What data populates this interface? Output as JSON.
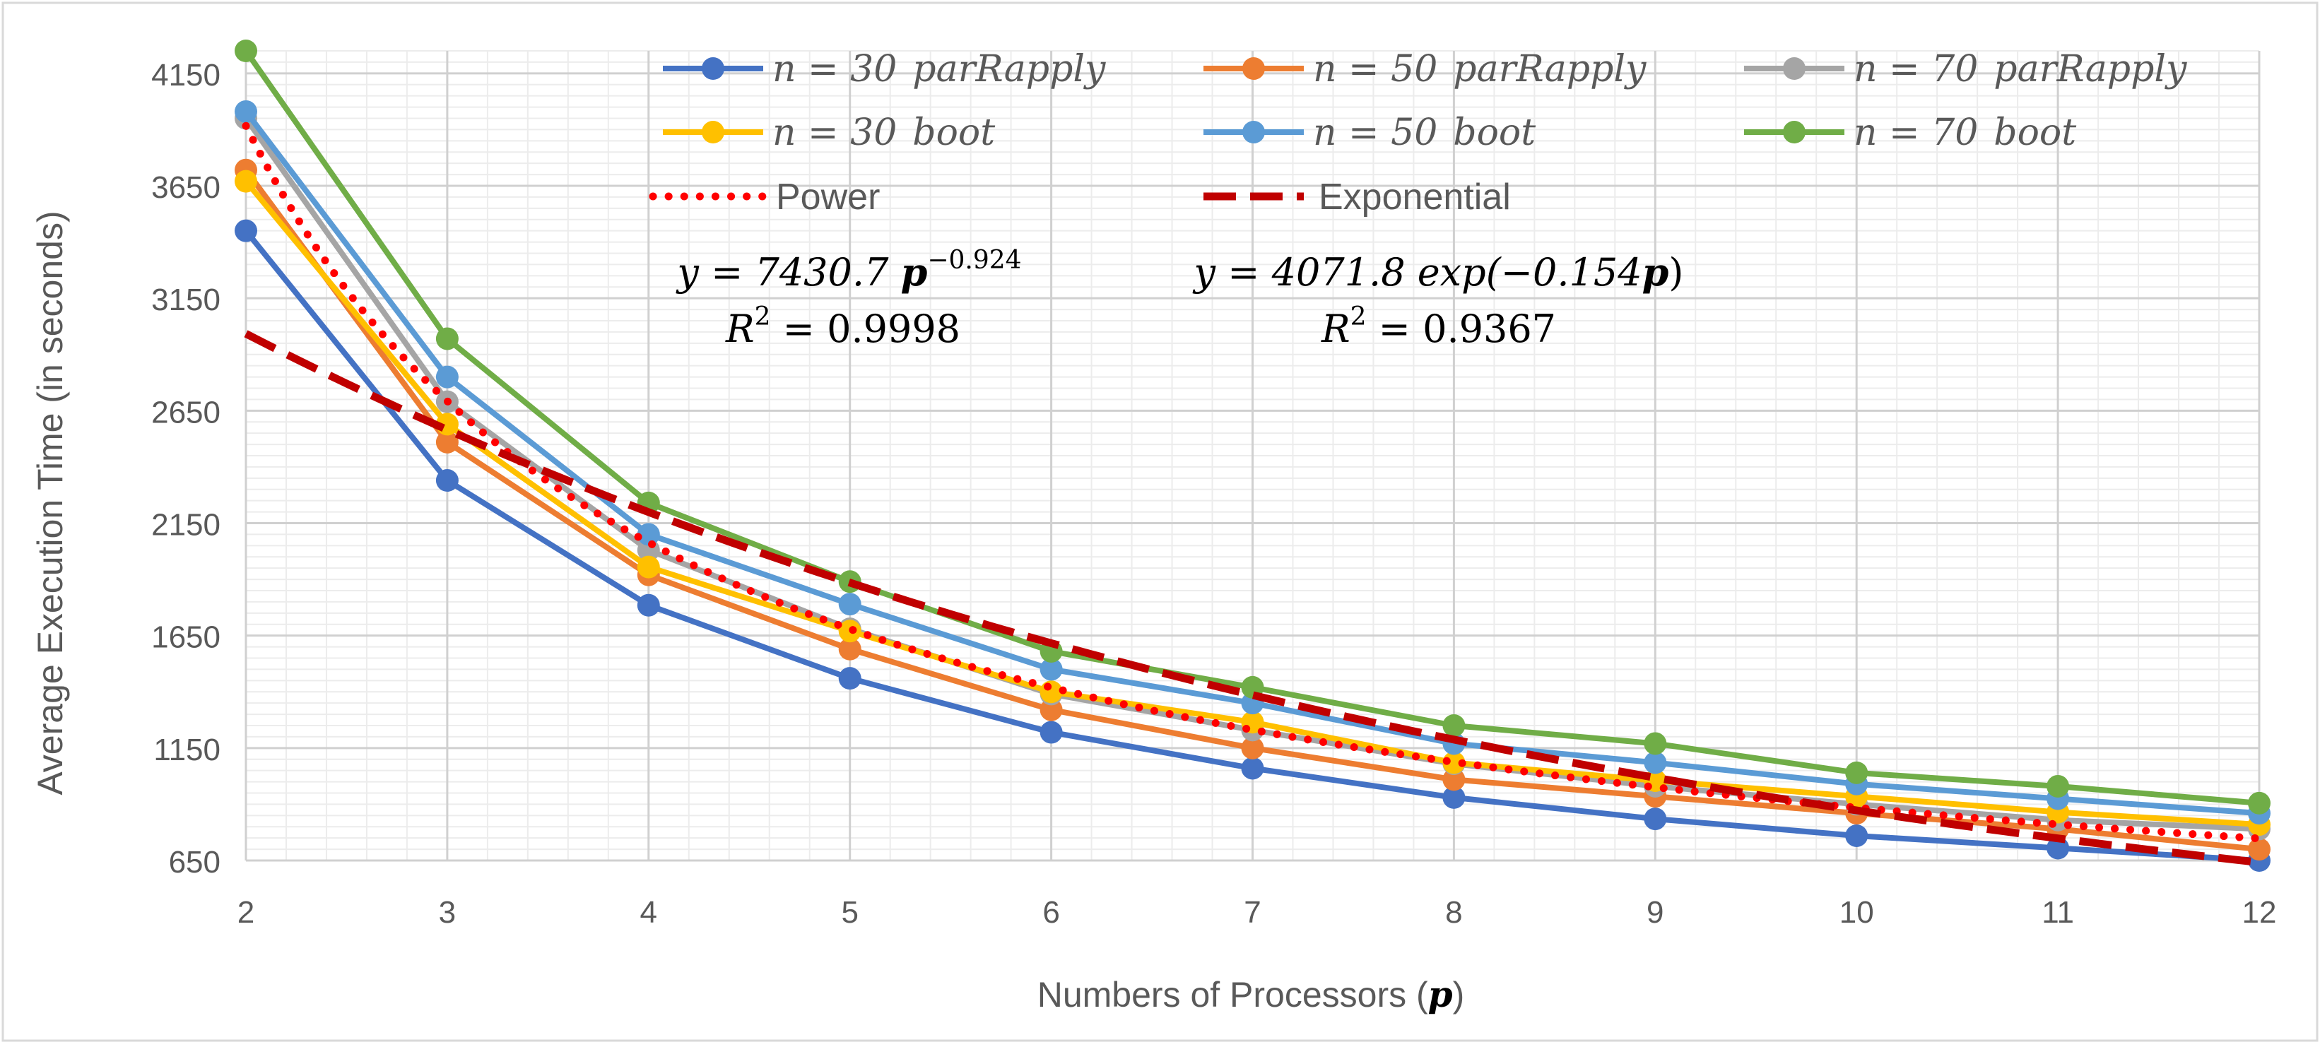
{
  "chart_data": {
    "type": "line",
    "title": "",
    "xlabel": "Numbers of Processors (",
    "xlabel_symbol": "p",
    "xlabel_close": ")",
    "ylabel": "Average Execution Time (in seconds)",
    "x": [
      2,
      3,
      4,
      5,
      6,
      7,
      8,
      9,
      10,
      11,
      12
    ],
    "x_tick_labels": [
      "2",
      "3",
      "4",
      "5",
      "6",
      "7",
      "8",
      "9",
      "10",
      "11",
      "12"
    ],
    "y_ticks": [
      650,
      1150,
      1650,
      2150,
      2650,
      3150,
      3650,
      4150
    ],
    "y_tick_labels": [
      "650",
      "1150",
      "1650",
      "2150",
      "2650",
      "3150",
      "3650",
      "4150"
    ],
    "ylim": [
      650,
      4250
    ],
    "grid": true,
    "legend_position": "top",
    "series": [
      {
        "name": "n = 30  parRapply",
        "legend_n": "n = 30",
        "legend_method": "parRapply",
        "color": "#4472C4",
        "values": [
          3450,
          2340,
          1785,
          1460,
          1220,
          1060,
          930,
          835,
          760,
          705,
          650
        ]
      },
      {
        "name": "n = 50  parRapply",
        "legend_n": "n = 50",
        "legend_method": "parRapply",
        "color": "#ED7D31",
        "values": [
          3720,
          2510,
          1920,
          1590,
          1320,
          1150,
          1010,
          935,
          860,
          790,
          700
        ]
      },
      {
        "name": "n = 70  parRapply",
        "legend_n": "n = 70",
        "legend_method": "parRapply",
        "color": "#A5A5A5",
        "values": [
          3950,
          2690,
          2030,
          1680,
          1390,
          1230,
          1080,
          980,
          900,
          830,
          790
        ]
      },
      {
        "name": "n = 30  boot",
        "legend_n": "n = 30",
        "legend_method": "boot",
        "color": "#FFC000",
        "values": [
          3670,
          2590,
          1955,
          1670,
          1400,
          1265,
          1085,
          1005,
          935,
          865,
          810
        ]
      },
      {
        "name": "n = 50  boot",
        "legend_n": "n = 50",
        "legend_method": "boot",
        "color": "#5B9BD5",
        "values": [
          3980,
          2800,
          2100,
          1790,
          1500,
          1350,
          1170,
          1085,
          990,
          925,
          860
        ]
      },
      {
        "name": "n = 70  boot",
        "legend_n": "n = 70",
        "legend_method": "boot",
        "color": "#70AD47",
        "values": [
          4250,
          2970,
          2240,
          1890,
          1580,
          1420,
          1250,
          1170,
          1040,
          980,
          905
        ]
      }
    ],
    "trendlines": [
      {
        "name": "Power",
        "style": "dotted",
        "color": "#FF0000",
        "type": "power",
        "a": 7430.7,
        "b": -0.924,
        "equation": "y = 7430.7 p^(−0.924)",
        "eq_lhs": "y = 7430.7 ",
        "eq_var": "p",
        "eq_exp": "−0.924",
        "r2_label": "R",
        "r2_value": " = 0.9998"
      },
      {
        "name": "Exponential",
        "style": "dashed",
        "color": "#C00000",
        "type": "exponential",
        "a": 4071.8,
        "b": -0.154,
        "equation": "y = 4071.8 exp(−0.154p)",
        "eq_lhs": "y = 4071.8 exp(−0.154",
        "eq_var": "p",
        "eq_close": ")",
        "r2_label": "R",
        "r2_value": " = 0.9367"
      }
    ]
  }
}
